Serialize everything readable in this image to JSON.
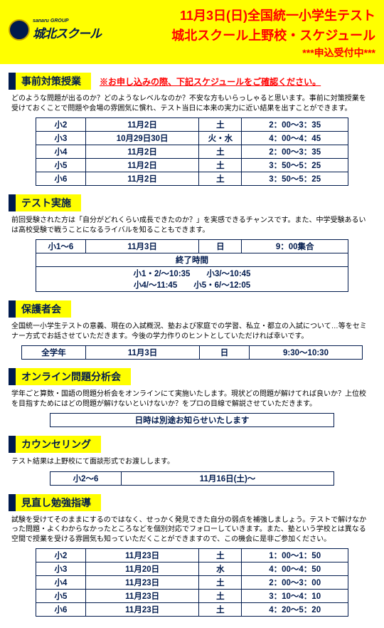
{
  "header": {
    "logo_small": "sanaru GROUP",
    "logo_main": "城北スクール",
    "title1": "11月3日(日)全国統一小学生テスト",
    "title2": "城北スクール上野校・スケジュール",
    "title3": "***申込受付中***"
  },
  "sections": {
    "prep": {
      "title": "事前対策授業",
      "note": "※お申し込みの際、下記スケジュールをご確認ください。",
      "desc": "どのような問題が出るのか？どのようなレベルなのか？不安な方もいらっしゃると思います。事前に対策授業を受けておくことで問題や会場の雰囲気に慣れ、テスト当日に本来の実力に近い結果を出すことができます。",
      "rows": [
        {
          "g": "小2",
          "d": "11月2日",
          "w": "土",
          "t": "2：00～3：35"
        },
        {
          "g": "小3",
          "d": "10月29日30日",
          "w": "火・水",
          "t": "4：00～4：45"
        },
        {
          "g": "小4",
          "d": "11月2日",
          "w": "土",
          "t": "2：00～3：35"
        },
        {
          "g": "小5",
          "d": "11月2日",
          "w": "土",
          "t": "3：50～5：25"
        },
        {
          "g": "小6",
          "d": "11月2日",
          "w": "土",
          "t": "3：50～5：25"
        }
      ]
    },
    "test": {
      "title": "テスト実施",
      "desc": "前回受験された方は「自分がどれくらい成長できたのか？」を実感できるチャンスです。また、中学受験あるいは高校受験で戦うことになるライバルを知ることもできます。",
      "row1": {
        "g": "小1～6",
        "d": "11月3日",
        "w": "日",
        "t": "9：00集合"
      },
      "end_label": "終了時間",
      "end_times": "小1・2/～10:35　　小3/～10:45\n小4/～11:45　　小5・6/～12:05"
    },
    "parent": {
      "title": "保護者会",
      "desc": "全国統一小学生テストの意義、現在の入試概況、塾および家庭での学習、私立・都立の入試について…等をセミナー方式でお話させていただきます。今後の学力作りのヒントとしていただければ幸いです。",
      "row": {
        "g": "全学年",
        "d": "11月3日",
        "w": "日",
        "t": "9:30～10:30"
      }
    },
    "online": {
      "title": "オンライン問題分析会",
      "desc": "学年ごと算数・国語の問題分析会をオンラインにて実施いたします。現状どの問題が解けてれば良いか？上位校を目指すためにはどの問題が解けないといけないか？をプロの目線で解説させていただきます。",
      "notice": "日時は別途お知らせいたします"
    },
    "counseling": {
      "title": "カウンセリング",
      "desc": "テスト結果は上野校にて面談形式でお渡しします。",
      "row": {
        "g": "小2～6",
        "d": "11月16日(土)～"
      }
    },
    "review": {
      "title": "見直し勉強指導",
      "desc": "試験を受けてそのままにするのではなく、せっかく発見できた自分の弱点を補強しましょう。テストで解けなかった問題・よくわからなかったところなどを個別対応でフォローしていきます。また、塾という学校とは異なる空間で授業を受ける雰囲気も知っていただくことができますので、この機会に是非ご参加ください。",
      "rows": [
        {
          "g": "小2",
          "d": "11月23日",
          "w": "土",
          "t": "1：00～1：50"
        },
        {
          "g": "小3",
          "d": "11月20日",
          "w": "水",
          "t": "4：00～4：50"
        },
        {
          "g": "小4",
          "d": "11月23日",
          "w": "土",
          "t": "2：00～3：00"
        },
        {
          "g": "小5",
          "d": "11月23日",
          "w": "土",
          "t": "3：10～4：10"
        },
        {
          "g": "小6",
          "d": "11月23日",
          "w": "土",
          "t": "4：20～5：20"
        }
      ]
    }
  }
}
